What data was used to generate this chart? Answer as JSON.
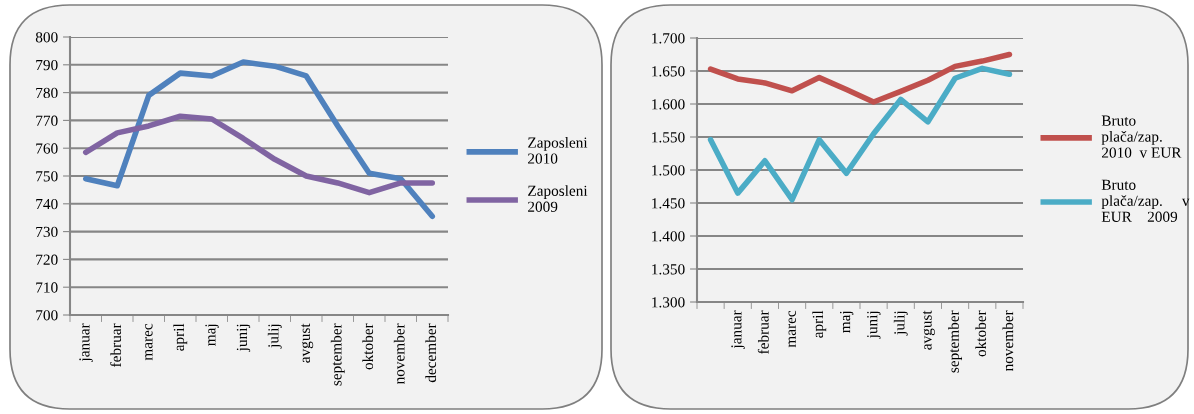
{
  "chart_data": [
    {
      "type": "line",
      "categories": [
        "januar",
        "februar",
        "marec",
        "april",
        "maj",
        "junij",
        "julij",
        "avgust",
        "september",
        "oktober",
        "november",
        "december"
      ],
      "series": [
        {
          "name": "Zaposleni\n2010",
          "color": "#4f81bd",
          "values": [
            749,
            746.5,
            779,
            787,
            786,
            791,
            789.5,
            786,
            768,
            751,
            749,
            735.5
          ]
        },
        {
          "name": "Zaposleni\n2009",
          "color": "#8064a2",
          "values": [
            758.5,
            765.5,
            768,
            771.5,
            770.5,
            763.5,
            756,
            750,
            747.5,
            744,
            747.5,
            747.5
          ]
        }
      ],
      "ylim": [
        700,
        800
      ],
      "yticks": [
        700,
        710,
        720,
        730,
        740,
        750,
        760,
        770,
        780,
        790,
        800
      ],
      "grid": "y",
      "legend": "right",
      "marker": "none",
      "line_style": "solid"
    },
    {
      "type": "line",
      "categories": [
        null,
        "januar",
        "februar",
        "marec",
        "april",
        "maj",
        "junij",
        "julij",
        "avgust",
        "september",
        "oktober",
        "november"
      ],
      "series": [
        {
          "name": "Bruto\nplača/zap.\n2010  v EUR",
          "color": "#c0504d",
          "values": [
            1.653,
            1.638,
            1.632,
            1.62,
            1.64,
            1.622,
            1.603,
            1.619,
            1.636,
            1.657,
            1.665,
            1.675
          ]
        },
        {
          "name": "Bruto\nplača/zap.     v\nEUR    2009",
          "color": "#4bacc6",
          "values": [
            1.546,
            1.465,
            1.514,
            1.455,
            1.546,
            1.495,
            1.555,
            1.607,
            1.573,
            1.639,
            1.654,
            1.645
          ]
        }
      ],
      "ylim": [
        1.3,
        1.7
      ],
      "yticks": [
        {
          "value": 1.3,
          "label": "1.300"
        },
        {
          "value": 1.35,
          "label": "1.350"
        },
        {
          "value": 1.4,
          "label": "1.400"
        },
        {
          "value": 1.45,
          "label": "1.450"
        },
        {
          "value": 1.5,
          "label": "1.500"
        },
        {
          "value": 1.55,
          "label": "1.550"
        },
        {
          "value": 1.6,
          "label": "1.600"
        },
        {
          "value": 1.65,
          "label": "1.650"
        },
        {
          "value": 1.7,
          "label": "1.700"
        }
      ],
      "grid": "y",
      "legend": "right",
      "marker": "none",
      "line_style": "solid"
    }
  ]
}
